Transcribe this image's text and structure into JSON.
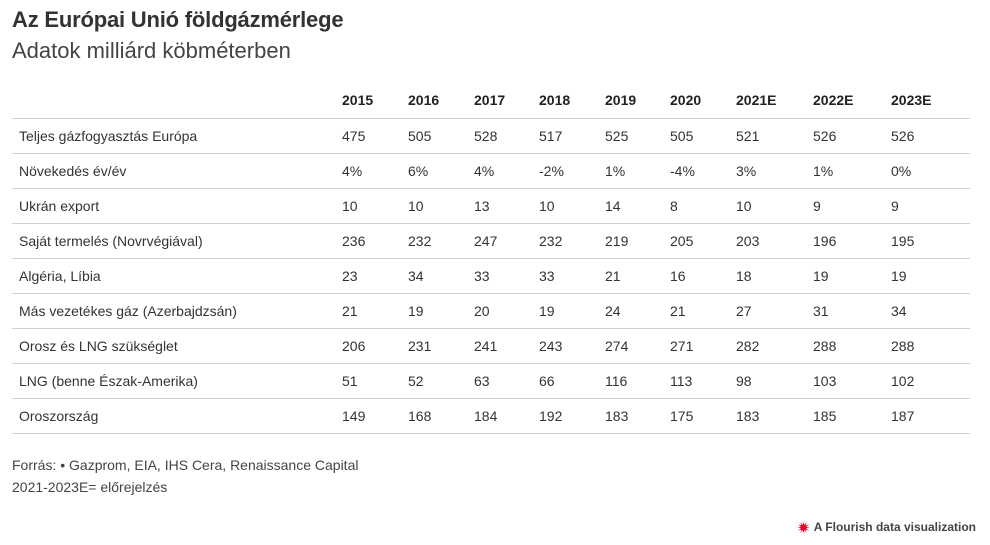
{
  "header": {
    "title": "Az Európai Unió földgázmérlege",
    "subtitle": "Adatok milliárd köbméterben"
  },
  "chart_data": {
    "type": "table",
    "columns": [
      "",
      "2015",
      "2016",
      "2017",
      "2018",
      "2019",
      "2020",
      "2021E",
      "2022E",
      "2023E"
    ],
    "rows": [
      [
        "Teljes gázfogyasztás Európa",
        "475",
        "505",
        "528",
        "517",
        "525",
        "505",
        "521",
        "526",
        "526"
      ],
      [
        "Növekedés év/év",
        "4%",
        "6%",
        "4%",
        "-2%",
        "1%",
        "-4%",
        "3%",
        "1%",
        "0%"
      ],
      [
        "Ukrán export",
        "10",
        "10",
        "13",
        "10",
        "14",
        "8",
        "10",
        "9",
        "9"
      ],
      [
        "Saját termelés (Novrvégiával)",
        "236",
        "232",
        "247",
        "232",
        "219",
        "205",
        "203",
        "196",
        "195"
      ],
      [
        "Algéria, Líbia",
        "23",
        "34",
        "33",
        "33",
        "21",
        "16",
        "18",
        "19",
        "19"
      ],
      [
        "Más vezetékes gáz (Azerbajdzsán)",
        "21",
        "19",
        "20",
        "19",
        "24",
        "21",
        "27",
        "31",
        "34"
      ],
      [
        "Orosz és LNG szükséglet",
        "206",
        "231",
        "241",
        "243",
        "274",
        "271",
        "282",
        "288",
        "288"
      ],
      [
        "LNG (benne Észak-Amerika)",
        "51",
        "52",
        "63",
        "66",
        "116",
        "113",
        "98",
        "103",
        "102"
      ],
      [
        "Oroszország",
        "149",
        "168",
        "184",
        "192",
        "183",
        "175",
        "183",
        "185",
        "187"
      ]
    ]
  },
  "footer": {
    "source": "Forrás: • Gazprom, EIA, IHS Cera, Renaissance Capital",
    "note": "2021-2023E= előrejelzés",
    "credit": "A Flourish data visualization",
    "credit_icon": "flourish-logo-icon",
    "credit_icon_color": "#e8002a"
  }
}
